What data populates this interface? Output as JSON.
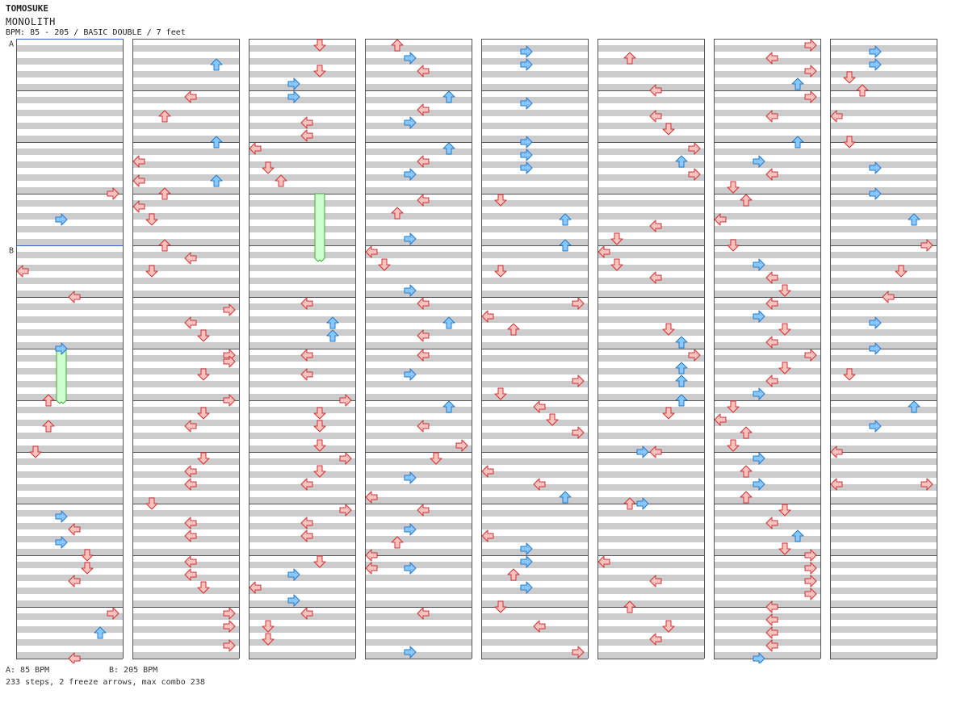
{
  "header": {
    "artist": "TOMOSUKE",
    "title": "MONOLITH",
    "info": "BPM: 85 - 205 / BASIC DOUBLE / 7 feet"
  },
  "footer": {
    "bpm_a": "A: 85 BPM",
    "bpm_b": "B: 205 BPM",
    "stats": "233 steps, 2 freeze arrows, max combo 238"
  },
  "colors": {
    "stripe": "#cccccc",
    "measure_line": "#555555",
    "bpm_line": "#3366cc",
    "red_fill": "#ffc0c0",
    "red_stroke": "#cc3333",
    "blue_fill": "#88c8ff",
    "blue_stroke": "#2277cc",
    "freeze_fill": "#ccffcc",
    "freeze_stroke": "#44aa44"
  },
  "chart_data": {
    "type": "step-chart",
    "mode": "BASIC DOUBLE",
    "difficulty_feet": 7,
    "columns": 8,
    "measures_per_column": 12,
    "panels": [
      "left",
      "down",
      "up",
      "right"
    ],
    "bpm_markers": [
      {
        "label": "A",
        "bpm": 85,
        "column": 0,
        "measure": 0
      },
      {
        "label": "B",
        "bpm": 205,
        "column": 0,
        "measure": 4
      }
    ],
    "freezes": [
      {
        "column": 0,
        "measure": 6,
        "start": 0.0,
        "length": 1.0,
        "lane": 3
      },
      {
        "column": 2,
        "measure": 3,
        "start": 0.0,
        "length": 1.25,
        "lane": 5
      }
    ],
    "notes": [
      [
        0,
        2,
        1,
        7
      ],
      [
        0,
        2,
        3,
        4
      ],
      [
        0,
        3,
        0.5,
        3
      ],
      [
        0,
        3,
        1.5,
        0
      ],
      [
        0,
        6,
        0,
        3
      ],
      [
        0,
        7,
        0,
        2
      ],
      [
        0,
        7,
        0.5,
        2
      ],
      [
        0,
        8,
        0,
        1
      ],
      [
        0,
        9,
        0.25,
        3
      ],
      [
        0,
        9,
        0.5,
        4
      ],
      [
        0,
        9,
        0.75,
        3
      ],
      [
        0,
        10,
        0,
        5
      ],
      [
        0,
        10,
        0.25,
        5
      ],
      [
        0,
        10,
        0.5,
        4
      ],
      [
        0,
        11,
        0.125,
        7
      ],
      [
        0,
        11,
        0.5,
        6
      ],
      [
        0,
        11,
        1,
        4
      ],
      [
        1,
        0,
        0.5,
        6
      ],
      [
        1,
        1,
        0.125,
        4
      ],
      [
        1,
        1,
        0.5,
        2
      ],
      [
        1,
        1,
        1,
        6
      ],
      [
        1,
        2,
        0.375,
        0
      ],
      [
        1,
        2,
        0.75,
        0
      ],
      [
        1,
        2,
        0.75,
        6
      ],
      [
        1,
        3,
        0,
        2
      ],
      [
        1,
        3,
        0.25,
        0
      ],
      [
        1,
        3,
        0.5,
        1
      ],
      [
        1,
        4,
        0,
        2
      ],
      [
        1,
        4,
        0.25,
        4
      ],
      [
        1,
        4,
        0.5,
        1
      ],
      [
        1,
        5,
        0.25,
        7
      ],
      [
        1,
        5,
        0.5,
        4
      ],
      [
        1,
        5,
        0.75,
        5
      ],
      [
        1,
        6,
        0.125,
        7
      ],
      [
        1,
        6,
        0.25,
        7
      ],
      [
        1,
        6,
        0.5,
        5
      ],
      [
        1,
        7,
        0,
        7
      ],
      [
        1,
        7,
        0.25,
        5
      ],
      [
        1,
        7,
        0.5,
        4
      ],
      [
        1,
        8,
        0.125,
        5
      ],
      [
        1,
        8,
        0.375,
        4
      ],
      [
        1,
        8,
        0.625,
        4
      ],
      [
        1,
        9,
        0,
        1
      ],
      [
        1,
        9,
        0.375,
        4
      ],
      [
        1,
        9,
        0.625,
        4
      ],
      [
        1,
        10,
        0.125,
        4
      ],
      [
        1,
        10,
        0.375,
        4
      ],
      [
        1,
        10,
        0.625,
        5
      ],
      [
        1,
        11,
        0.125,
        7
      ],
      [
        1,
        11,
        0.375,
        7
      ],
      [
        1,
        11,
        0.75,
        7
      ],
      [
        2,
        0,
        0.125,
        5
      ],
      [
        2,
        0,
        0.625,
        5
      ],
      [
        2,
        0,
        0.875,
        3
      ],
      [
        2,
        1,
        0.125,
        3
      ],
      [
        2,
        1,
        0.625,
        4
      ],
      [
        2,
        1,
        0.875,
        4
      ],
      [
        2,
        2,
        0.125,
        0
      ],
      [
        2,
        2,
        0.5,
        1
      ],
      [
        2,
        2,
        0.75,
        2
      ],
      [
        2,
        5,
        0.125,
        4
      ],
      [
        2,
        5,
        0.5,
        6
      ],
      [
        2,
        5,
        0.75,
        6
      ],
      [
        2,
        6,
        0.125,
        4
      ],
      [
        2,
        6,
        0.5,
        4
      ],
      [
        2,
        7,
        0,
        7
      ],
      [
        2,
        7,
        0.25,
        5
      ],
      [
        2,
        7,
        0.5,
        5
      ],
      [
        2,
        7,
        0.875,
        5
      ],
      [
        2,
        8,
        0.125,
        7
      ],
      [
        2,
        8,
        0.375,
        5
      ],
      [
        2,
        8,
        0.625,
        4
      ],
      [
        2,
        9,
        0.125,
        7
      ],
      [
        2,
        9,
        0.375,
        4
      ],
      [
        2,
        9,
        0.625,
        4
      ],
      [
        2,
        10,
        0.125,
        5
      ],
      [
        2,
        10,
        0.375,
        3
      ],
      [
        2,
        10,
        0.625,
        0
      ],
      [
        2,
        10,
        0.875,
        3
      ],
      [
        2,
        11,
        0.125,
        4
      ],
      [
        2,
        11,
        0.375,
        1
      ],
      [
        2,
        11,
        0.625,
        1
      ],
      [
        3,
        0,
        0.125,
        2
      ],
      [
        3,
        0,
        0.375,
        3
      ],
      [
        3,
        0,
        0.625,
        4
      ],
      [
        3,
        1,
        0.125,
        6
      ],
      [
        3,
        1,
        0.375,
        4
      ],
      [
        3,
        1,
        0.625,
        3
      ],
      [
        3,
        2,
        0.125,
        6
      ],
      [
        3,
        2,
        0.375,
        4
      ],
      [
        3,
        2,
        0.625,
        3
      ],
      [
        3,
        3,
        0.125,
        4
      ],
      [
        3,
        3,
        0.375,
        2
      ],
      [
        3,
        3,
        0.875,
        3
      ],
      [
        3,
        4,
        0.125,
        0
      ],
      [
        3,
        4,
        0.375,
        1
      ],
      [
        3,
        4,
        0.875,
        3
      ],
      [
        3,
        5,
        0.125,
        4
      ],
      [
        3,
        5,
        0.5,
        6
      ],
      [
        3,
        5,
        0.75,
        4
      ],
      [
        3,
        6,
        0.125,
        4
      ],
      [
        3,
        6,
        0.5,
        3
      ],
      [
        3,
        7,
        0.125,
        6
      ],
      [
        3,
        7,
        0.5,
        4
      ],
      [
        3,
        7,
        0.875,
        7
      ],
      [
        3,
        8,
        0.125,
        5
      ],
      [
        3,
        8,
        0.5,
        3
      ],
      [
        3,
        8,
        0.875,
        0
      ],
      [
        3,
        9,
        0.125,
        4
      ],
      [
        3,
        9,
        0.5,
        3
      ],
      [
        3,
        9,
        0.75,
        2
      ],
      [
        3,
        9,
        1,
        0
      ],
      [
        3,
        10,
        0.25,
        0
      ],
      [
        3,
        10,
        0.25,
        3
      ],
      [
        3,
        11,
        0.125,
        4
      ],
      [
        3,
        11,
        0.875,
        3
      ],
      [
        4,
        0,
        0.25,
        3
      ],
      [
        4,
        0,
        0.5,
        3
      ],
      [
        4,
        1,
        0.25,
        3
      ],
      [
        4,
        2,
        0,
        3
      ],
      [
        4,
        2,
        0.25,
        3
      ],
      [
        4,
        2,
        0.5,
        3
      ],
      [
        4,
        3,
        0.125,
        1
      ],
      [
        4,
        3,
        0.5,
        6
      ],
      [
        4,
        4,
        0,
        6
      ],
      [
        4,
        4,
        0.5,
        1
      ],
      [
        4,
        5,
        0.125,
        7
      ],
      [
        4,
        5,
        0.375,
        0
      ],
      [
        4,
        5,
        0.625,
        2
      ],
      [
        4,
        6,
        0.625,
        7
      ],
      [
        4,
        6,
        0.875,
        1
      ],
      [
        4,
        7,
        0.125,
        4
      ],
      [
        4,
        7,
        0.375,
        5
      ],
      [
        4,
        7,
        0.625,
        7
      ],
      [
        4,
        8,
        0.375,
        0
      ],
      [
        4,
        8,
        0.625,
        4
      ],
      [
        4,
        8,
        0.875,
        6
      ],
      [
        4,
        9,
        0.625,
        0
      ],
      [
        4,
        9,
        0.875,
        3
      ],
      [
        4,
        10,
        0.125,
        3
      ],
      [
        4,
        10,
        0.375,
        2
      ],
      [
        4,
        10,
        0.625,
        3
      ],
      [
        4,
        11,
        0,
        1
      ],
      [
        4,
        11,
        0.375,
        4
      ],
      [
        4,
        11,
        0.875,
        7
      ],
      [
        5,
        0,
        0.375,
        2
      ],
      [
        5,
        1,
        0,
        4
      ],
      [
        5,
        1,
        0.5,
        4
      ],
      [
        5,
        1,
        0.75,
        5
      ],
      [
        5,
        2,
        0.125,
        7
      ],
      [
        5,
        2,
        0.375,
        6
      ],
      [
        5,
        2,
        0.625,
        7
      ],
      [
        5,
        3,
        0.625,
        4
      ],
      [
        5,
        3,
        0.875,
        1
      ],
      [
        5,
        4,
        0.125,
        0
      ],
      [
        5,
        4,
        0.375,
        1
      ],
      [
        5,
        4,
        0.625,
        4
      ],
      [
        5,
        5,
        0.625,
        5
      ],
      [
        5,
        5,
        0.875,
        6
      ],
      [
        5,
        6,
        0.125,
        7
      ],
      [
        5,
        6,
        0.375,
        6
      ],
      [
        5,
        6,
        0.625,
        6
      ],
      [
        5,
        7,
        0,
        6
      ],
      [
        5,
        7,
        0.25,
        5
      ],
      [
        5,
        8,
        0,
        3
      ],
      [
        5,
        8,
        0,
        4
      ],
      [
        5,
        9,
        0,
        2
      ],
      [
        5,
        9,
        0,
        3
      ],
      [
        5,
        10,
        0.125,
        0
      ],
      [
        5,
        10,
        0.5,
        4
      ],
      [
        5,
        11,
        0,
        2
      ],
      [
        5,
        11,
        0.375,
        5
      ],
      [
        5,
        11,
        0.625,
        4
      ],
      [
        6,
        0,
        0.125,
        7
      ],
      [
        6,
        0,
        0.375,
        4
      ],
      [
        6,
        0,
        0.625,
        7
      ],
      [
        6,
        0,
        0.875,
        6
      ],
      [
        6,
        1,
        0.125,
        7
      ],
      [
        6,
        1,
        0.5,
        4
      ],
      [
        6,
        2,
        0,
        6
      ],
      [
        6,
        2,
        0.375,
        3
      ],
      [
        6,
        2,
        0.625,
        4
      ],
      [
        6,
        2,
        0.875,
        1
      ],
      [
        6,
        3,
        0.125,
        2
      ],
      [
        6,
        3,
        0.5,
        0
      ],
      [
        6,
        4,
        0,
        1
      ],
      [
        6,
        4,
        0.375,
        3
      ],
      [
        6,
        4,
        0.625,
        4
      ],
      [
        6,
        4,
        0.875,
        5
      ],
      [
        6,
        5,
        0.125,
        4
      ],
      [
        6,
        5,
        0.375,
        3
      ],
      [
        6,
        5,
        0.625,
        5
      ],
      [
        6,
        5,
        0.875,
        4
      ],
      [
        6,
        6,
        0.125,
        7
      ],
      [
        6,
        6,
        0.375,
        5
      ],
      [
        6,
        6,
        0.625,
        4
      ],
      [
        6,
        6,
        0.875,
        3
      ],
      [
        6,
        7,
        0.125,
        1
      ],
      [
        6,
        7,
        0.375,
        0
      ],
      [
        6,
        7,
        0.625,
        2
      ],
      [
        6,
        7,
        0.875,
        1
      ],
      [
        6,
        8,
        0.125,
        3
      ],
      [
        6,
        8,
        0.375,
        2
      ],
      [
        6,
        8,
        0.625,
        3
      ],
      [
        6,
        8,
        0.875,
        2
      ],
      [
        6,
        9,
        0.125,
        5
      ],
      [
        6,
        9,
        0.375,
        4
      ],
      [
        6,
        9,
        0.625,
        6
      ],
      [
        6,
        9,
        0.875,
        5
      ],
      [
        6,
        10,
        0,
        7
      ],
      [
        6,
        10,
        0.25,
        7
      ],
      [
        6,
        10,
        0.5,
        7
      ],
      [
        6,
        10,
        0.75,
        7
      ],
      [
        6,
        11,
        0,
        4
      ],
      [
        6,
        11,
        0.25,
        4
      ],
      [
        6,
        11,
        0.5,
        4
      ],
      [
        6,
        11,
        0.75,
        4
      ],
      [
        6,
        11,
        1,
        3
      ],
      [
        7,
        0,
        0.25,
        3
      ],
      [
        7,
        0,
        0.5,
        3
      ],
      [
        7,
        0,
        0.75,
        1
      ],
      [
        7,
        1,
        0,
        2
      ],
      [
        7,
        1,
        0.5,
        0
      ],
      [
        7,
        2,
        0,
        1
      ],
      [
        7,
        2,
        0.5,
        3
      ],
      [
        7,
        3,
        0,
        3
      ],
      [
        7,
        3,
        0.5,
        6
      ],
      [
        7,
        4,
        0,
        7
      ],
      [
        7,
        4,
        0.5,
        5
      ],
      [
        7,
        5,
        0,
        4
      ],
      [
        7,
        5,
        0.5,
        3
      ],
      [
        7,
        6,
        0,
        3
      ],
      [
        7,
        6,
        0.5,
        1
      ],
      [
        7,
        7,
        0.125,
        6
      ],
      [
        7,
        7,
        0.5,
        3
      ],
      [
        7,
        8,
        0,
        0
      ],
      [
        7,
        8,
        0.625,
        0
      ],
      [
        7,
        8,
        0.625,
        7
      ]
    ]
  }
}
